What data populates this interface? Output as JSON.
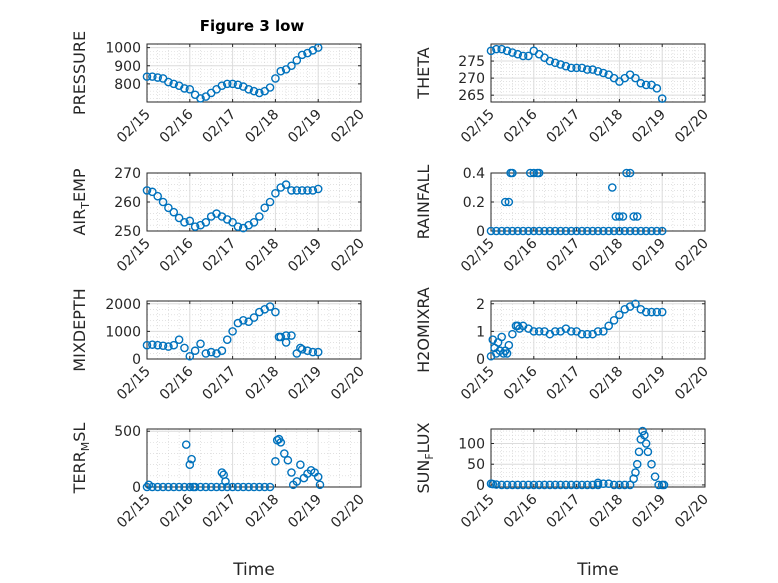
{
  "figure": {
    "title": "Figure 3 low",
    "marker_color": "#0072BD"
  },
  "chart_data": [
    {
      "type": "scatter",
      "id": "pressure",
      "ylabel": "PRESSURE",
      "xlabel": "",
      "xlim": [
        "02/15",
        "02/20"
      ],
      "xticks": [
        "02/15",
        "02/16",
        "02/17",
        "02/18",
        "02/19",
        "02/20"
      ],
      "ylim": [
        700,
        1020
      ],
      "yticks": [
        800,
        900,
        1000
      ],
      "yticklabels": [
        "800",
        "900",
        "1000"
      ],
      "grid": true,
      "minor_grid": true,
      "x": [
        "02/15 00:00",
        "02/15 03:00",
        "02/15 06:00",
        "02/15 09:00",
        "02/15 12:00",
        "02/15 15:00",
        "02/15 18:00",
        "02/15 21:00",
        "02/16 00:00",
        "02/16 03:00",
        "02/16 06:00",
        "02/16 09:00",
        "02/16 12:00",
        "02/16 15:00",
        "02/16 18:00",
        "02/16 21:00",
        "02/17 00:00",
        "02/17 03:00",
        "02/17 06:00",
        "02/17 09:00",
        "02/17 12:00",
        "02/17 15:00",
        "02/17 18:00",
        "02/17 21:00",
        "02/18 00:00",
        "02/18 03:00",
        "02/18 06:00",
        "02/18 09:00",
        "02/18 12:00",
        "02/18 15:00",
        "02/18 18:00",
        "02/18 21:00",
        "02/19 00:00"
      ],
      "y": [
        840,
        840,
        835,
        830,
        810,
        800,
        790,
        775,
        770,
        740,
        720,
        730,
        750,
        770,
        790,
        800,
        800,
        795,
        785,
        770,
        760,
        750,
        760,
        780,
        830,
        870,
        880,
        900,
        930,
        960,
        970,
        985,
        1000
      ]
    },
    {
      "type": "scatter",
      "id": "theta",
      "ylabel": "THETA",
      "xlabel": "",
      "xlim": [
        "02/15",
        "02/20"
      ],
      "xticks": [
        "02/15",
        "02/16",
        "02/17",
        "02/18",
        "02/19",
        "02/20"
      ],
      "ylim": [
        263,
        280
      ],
      "yticks": [
        265,
        270,
        275
      ],
      "yticklabels": [
        "265",
        "270",
        "275"
      ],
      "grid": true,
      "minor_grid": true,
      "x": [
        "02/15 00:00",
        "02/15 03:00",
        "02/15 06:00",
        "02/15 09:00",
        "02/15 12:00",
        "02/15 15:00",
        "02/15 18:00",
        "02/15 21:00",
        "02/16 00:00",
        "02/16 03:00",
        "02/16 06:00",
        "02/16 09:00",
        "02/16 12:00",
        "02/16 15:00",
        "02/16 18:00",
        "02/16 21:00",
        "02/17 00:00",
        "02/17 03:00",
        "02/17 06:00",
        "02/17 09:00",
        "02/17 12:00",
        "02/17 15:00",
        "02/17 18:00",
        "02/17 21:00",
        "02/18 00:00",
        "02/18 03:00",
        "02/18 06:00",
        "02/18 09:00",
        "02/18 12:00",
        "02/18 15:00",
        "02/18 18:00",
        "02/18 21:00",
        "02/19 00:00"
      ],
      "y": [
        278,
        278.5,
        278.5,
        278,
        277.5,
        277,
        276.5,
        276.5,
        278,
        277,
        276,
        275,
        274.5,
        274,
        273.5,
        273,
        273,
        273,
        272.5,
        272.5,
        272,
        271.5,
        271,
        270,
        269,
        270,
        271,
        270,
        268.5,
        268,
        268,
        267,
        264
      ]
    },
    {
      "type": "scatter",
      "id": "air_temp",
      "ylabel": "AIR_TEMP",
      "ylabel_main": "AIR",
      "ylabel_sub": "T",
      "ylabel_rest": "EMP",
      "xlabel": "",
      "xlim": [
        "02/15",
        "02/20"
      ],
      "xticks": [
        "02/15",
        "02/16",
        "02/17",
        "02/18",
        "02/19",
        "02/20"
      ],
      "ylim": [
        250,
        270
      ],
      "yticks": [
        250,
        260,
        270
      ],
      "yticklabels": [
        "250",
        "260",
        "270"
      ],
      "grid": true,
      "minor_grid": true,
      "x": [
        "02/15 00:00",
        "02/15 03:00",
        "02/15 06:00",
        "02/15 09:00",
        "02/15 12:00",
        "02/15 15:00",
        "02/15 18:00",
        "02/15 21:00",
        "02/16 00:00",
        "02/16 03:00",
        "02/16 06:00",
        "02/16 09:00",
        "02/16 12:00",
        "02/16 15:00",
        "02/16 18:00",
        "02/16 21:00",
        "02/17 00:00",
        "02/17 03:00",
        "02/17 06:00",
        "02/17 09:00",
        "02/17 12:00",
        "02/17 15:00",
        "02/17 18:00",
        "02/17 21:00",
        "02/18 00:00",
        "02/18 03:00",
        "02/18 06:00",
        "02/18 09:00",
        "02/18 12:00",
        "02/18 15:00",
        "02/18 18:00",
        "02/18 21:00",
        "02/19 00:00"
      ],
      "y": [
        264,
        263.5,
        262,
        260,
        258,
        256.5,
        254.5,
        253,
        253.5,
        251.5,
        252,
        253,
        255,
        256,
        255,
        254,
        253,
        251.5,
        251,
        252,
        253,
        255,
        258,
        260,
        263,
        265,
        266,
        264,
        264,
        264,
        264,
        264,
        264.5
      ]
    },
    {
      "type": "scatter",
      "id": "rainfall",
      "ylabel": "RAINFALL",
      "xlabel": "",
      "xlim": [
        "02/15",
        "02/20"
      ],
      "xticks": [
        "02/15",
        "02/16",
        "02/17",
        "02/18",
        "02/19",
        "02/20"
      ],
      "ylim": [
        0,
        0.4
      ],
      "yticks": [
        0,
        0.2,
        0.4
      ],
      "yticklabels": [
        "0",
        "0.2",
        "0.4"
      ],
      "grid": true,
      "minor_grid": true,
      "x": [
        "02/15 00:00",
        "02/15 03:00",
        "02/15 06:00",
        "02/15 09:00",
        "02/15 12:00",
        "02/15 15:00",
        "02/15 18:00",
        "02/15 21:00",
        "02/16 00:00",
        "02/16 03:00",
        "02/16 06:00",
        "02/16 09:00",
        "02/16 12:00",
        "02/16 15:00",
        "02/16 18:00",
        "02/16 21:00",
        "02/17 00:00",
        "02/17 03:00",
        "02/17 06:00",
        "02/17 09:00",
        "02/17 12:00",
        "02/17 15:00",
        "02/17 18:00",
        "02/17 21:00",
        "02/18 00:00",
        "02/18 03:00",
        "02/18 06:00",
        "02/18 09:00",
        "02/18 12:00",
        "02/18 15:00",
        "02/18 18:00",
        "02/18 21:00",
        "02/19 00:00",
        "02/15 08:00",
        "02/15 10:00",
        "02/15 11:00",
        "02/15 12:00",
        "02/15 22:00",
        "02/16 00:00",
        "02/16 02:00",
        "02/16 03:00",
        "02/17 20:00",
        "02/17 22:00",
        "02/18 00:00",
        "02/18 02:00",
        "02/18 04:00",
        "02/18 06:00",
        "02/18 08:00",
        "02/18 10:00"
      ],
      "y": [
        0,
        0,
        0,
        0,
        0,
        0,
        0,
        0,
        0,
        0,
        0,
        0,
        0,
        0,
        0,
        0,
        0,
        0,
        0,
        0,
        0,
        0,
        0,
        0,
        0,
        0,
        0,
        0,
        0,
        0,
        0,
        0,
        0,
        0.2,
        0.2,
        0.4,
        0.4,
        0.4,
        0.4,
        0.4,
        0.4,
        0.3,
        0.1,
        0.1,
        0.1,
        0.4,
        0.4,
        0.1,
        0.1
      ]
    },
    {
      "type": "scatter",
      "id": "mixdepth",
      "ylabel": "MIXDEPTH",
      "xlabel": "",
      "xlim": [
        "02/15",
        "02/20"
      ],
      "xticks": [
        "02/15",
        "02/16",
        "02/17",
        "02/18",
        "02/19",
        "02/20"
      ],
      "ylim": [
        0,
        2100
      ],
      "yticks": [
        0,
        1000,
        2000
      ],
      "yticklabels": [
        "0",
        "1000",
        "2000"
      ],
      "grid": true,
      "minor_grid": true,
      "x": [
        "02/15 00:00",
        "02/15 03:00",
        "02/15 06:00",
        "02/15 09:00",
        "02/15 12:00",
        "02/15 15:00",
        "02/15 18:00",
        "02/15 21:00",
        "02/16 00:00",
        "02/16 03:00",
        "02/16 06:00",
        "02/16 09:00",
        "02/16 12:00",
        "02/16 15:00",
        "02/16 18:00",
        "02/16 21:00",
        "02/17 00:00",
        "02/17 03:00",
        "02/17 06:00",
        "02/17 09:00",
        "02/17 12:00",
        "02/17 15:00",
        "02/17 18:00",
        "02/17 21:00",
        "02/18 00:00",
        "02/18 03:00",
        "02/18 06:00",
        "02/18 09:00",
        "02/18 12:00",
        "02/18 15:00",
        "02/18 18:00",
        "02/18 21:00",
        "02/19 00:00",
        "02/18 02:00",
        "02/18 06:00",
        "02/18 14:00"
      ],
      "y": [
        500,
        520,
        500,
        480,
        450,
        500,
        700,
        400,
        100,
        300,
        550,
        200,
        250,
        200,
        300,
        700,
        1000,
        1300,
        1400,
        1350,
        1500,
        1700,
        1800,
        1900,
        1700,
        800,
        600,
        850,
        200,
        350,
        300,
        250,
        250,
        800,
        850,
        400
      ]
    },
    {
      "type": "scatter",
      "id": "h2omixra",
      "ylabel": "H2OMIXRA",
      "xlabel": "",
      "xlim": [
        "02/15",
        "02/20"
      ],
      "xticks": [
        "02/15",
        "02/16",
        "02/17",
        "02/18",
        "02/19",
        "02/20"
      ],
      "ylim": [
        0,
        2.1
      ],
      "yticks": [
        0,
        1,
        2
      ],
      "yticklabels": [
        "0",
        "1",
        "2"
      ],
      "grid": true,
      "minor_grid": true,
      "x": [
        "02/15 00:00",
        "02/15 02:00",
        "02/15 03:00",
        "02/15 04:00",
        "02/15 05:00",
        "02/15 06:00",
        "02/15 07:00",
        "02/15 08:00",
        "02/15 10:00",
        "02/15 12:00",
        "02/15 14:00",
        "02/15 16:00",
        "02/15 18:00",
        "02/15 21:00",
        "02/16 00:00",
        "02/16 03:00",
        "02/16 06:00",
        "02/16 09:00",
        "02/16 12:00",
        "02/16 15:00",
        "02/16 18:00",
        "02/16 21:00",
        "02/17 00:00",
        "02/17 03:00",
        "02/17 06:00",
        "02/17 09:00",
        "02/17 12:00",
        "02/17 15:00",
        "02/17 18:00",
        "02/17 21:00",
        "02/18 00:00",
        "02/18 03:00",
        "02/18 06:00",
        "02/18 09:00",
        "02/18 12:00",
        "02/18 15:00",
        "02/18 18:00",
        "02/18 21:00",
        "02/19 00:00",
        "02/15 01:00",
        "02/15 09:00",
        "02/15 15:00"
      ],
      "y": [
        0.1,
        0.4,
        0.2,
        0.6,
        0.3,
        0.8,
        0.2,
        0.3,
        0.5,
        0.9,
        1.2,
        1.1,
        1.2,
        1.1,
        1.0,
        1.0,
        1.0,
        0.9,
        1.0,
        1.0,
        1.1,
        1.0,
        1.0,
        0.9,
        0.9,
        0.9,
        1.0,
        1.0,
        1.2,
        1.4,
        1.6,
        1.8,
        1.9,
        2.0,
        1.8,
        1.7,
        1.7,
        1.7,
        1.7,
        0.7,
        0.2,
        1.2
      ]
    },
    {
      "type": "scatter",
      "id": "terr_msl",
      "ylabel": "TERR_MSL",
      "ylabel_main": "TERR",
      "ylabel_sub": "M",
      "ylabel_rest": "SL",
      "xlabel": "Time",
      "xlim": [
        "02/15",
        "02/20"
      ],
      "xticks": [
        "02/15",
        "02/16",
        "02/17",
        "02/18",
        "02/19",
        "02/20"
      ],
      "ylim": [
        0,
        520
      ],
      "yticks": [
        0,
        500
      ],
      "yticklabels": [
        "0",
        "500"
      ],
      "grid": true,
      "minor_grid": true,
      "x": [
        "02/15 00:00",
        "02/15 03:00",
        "02/15 06:00",
        "02/15 09:00",
        "02/15 12:00",
        "02/15 15:00",
        "02/15 18:00",
        "02/15 21:00",
        "02/16 00:00",
        "02/16 03:00",
        "02/16 06:00",
        "02/16 09:00",
        "02/16 12:00",
        "02/16 15:00",
        "02/16 18:00",
        "02/16 21:00",
        "02/17 00:00",
        "02/17 03:00",
        "02/17 06:00",
        "02/17 09:00",
        "02/17 12:00",
        "02/17 15:00",
        "02/17 18:00",
        "02/17 21:00",
        "02/15 22:00",
        "02/16 00:00",
        "02/16 01:00",
        "02/16 02:00",
        "02/16 18:00",
        "02/16 19:00",
        "02/16 20:00",
        "02/18 00:00",
        "02/18 01:00",
        "02/18 02:00",
        "02/18 03:00",
        "02/18 05:00",
        "02/18 07:00",
        "02/18 09:00",
        "02/18 10:00",
        "02/18 12:00",
        "02/18 14:00",
        "02/18 16:00",
        "02/18 18:00",
        "02/18 20:00",
        "02/18 22:00",
        "02/19 00:00",
        "02/19 01:00",
        "02/15 01:00"
      ],
      "y": [
        0,
        0,
        0,
        0,
        0,
        0,
        0,
        0,
        0,
        0,
        0,
        0,
        0,
        0,
        0,
        0,
        0,
        0,
        0,
        0,
        0,
        0,
        0,
        0,
        380,
        200,
        250,
        0,
        130,
        110,
        50,
        230,
        420,
        430,
        400,
        300,
        240,
        130,
        20,
        50,
        200,
        80,
        120,
        150,
        130,
        90,
        20,
        20
      ]
    },
    {
      "type": "scatter",
      "id": "sun_flux",
      "ylabel": "SUN_FLUX",
      "ylabel_main": "SUN",
      "ylabel_sub": "F",
      "ylabel_rest": "LUX",
      "xlabel": "Time",
      "xlim": [
        "02/15",
        "02/20"
      ],
      "xticks": [
        "02/15",
        "02/16",
        "02/17",
        "02/18",
        "02/19",
        "02/20"
      ],
      "ylim": [
        -5,
        135
      ],
      "yticks": [
        0,
        50,
        100
      ],
      "yticklabels": [
        "0",
        "50",
        "100"
      ],
      "grid": true,
      "minor_grid": true,
      "x": [
        "02/15 00:00",
        "02/15 03:00",
        "02/15 06:00",
        "02/15 09:00",
        "02/15 12:00",
        "02/15 15:00",
        "02/15 18:00",
        "02/15 21:00",
        "02/16 00:00",
        "02/16 03:00",
        "02/16 06:00",
        "02/16 09:00",
        "02/16 12:00",
        "02/16 15:00",
        "02/16 18:00",
        "02/16 21:00",
        "02/17 00:00",
        "02/17 03:00",
        "02/17 06:00",
        "02/17 09:00",
        "02/17 12:00",
        "02/17 15:00",
        "02/17 18:00",
        "02/17 21:00",
        "02/18 00:00",
        "02/18 03:00",
        "02/18 06:00",
        "02/18 08:00",
        "02/18 09:00",
        "02/18 10:00",
        "02/18 11:00",
        "02/18 12:00",
        "02/18 13:00",
        "02/18 14:00",
        "02/18 15:00",
        "02/18 16:00",
        "02/18 18:00",
        "02/18 20:00",
        "02/18 22:00",
        "02/19 00:00",
        "02/19 01:00",
        "02/15 01:00",
        "02/17 12:00"
      ],
      "y": [
        3,
        1,
        0,
        0,
        0,
        0,
        0,
        0,
        0,
        0,
        0,
        0,
        0,
        0,
        0,
        0,
        0,
        0,
        0,
        0,
        0,
        3,
        3,
        0,
        0,
        0,
        0,
        15,
        30,
        50,
        80,
        110,
        130,
        120,
        100,
        80,
        50,
        20,
        0,
        0,
        0,
        2,
        5
      ]
    }
  ]
}
